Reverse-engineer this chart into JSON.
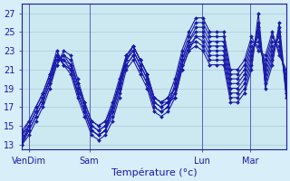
{
  "title": "",
  "xlabel": "Température (°c)",
  "ylabel": "",
  "bg_color": "#d8eef8",
  "plot_bg_color": "#cce8f0",
  "line_color": "#1a1aaa",
  "grid_color": "#aaccdd",
  "yticks": [
    13,
    15,
    17,
    19,
    21,
    23,
    25,
    27
  ],
  "ylim": [
    12.5,
    28.0
  ],
  "xlim": [
    0,
    110
  ],
  "xtick_positions": [
    3,
    28,
    75,
    95
  ],
  "xtick_labels": [
    "VenDim",
    "Sam",
    "Lun",
    "Mar"
  ],
  "series": [
    [
      13.0,
      14.0,
      15.5,
      17.0,
      19.0,
      21.5,
      23.0,
      22.5,
      20.0,
      17.5,
      15.5,
      15.0,
      15.5,
      17.0,
      19.5,
      22.5,
      23.5,
      22.0,
      20.5,
      18.0,
      17.5,
      17.5,
      18.0,
      21.0,
      23.0,
      23.5,
      23.0,
      21.5,
      21.5,
      21.5,
      17.5,
      17.5,
      18.5,
      21.0,
      27.0,
      19.0,
      21.5,
      26.0,
      18.5
    ],
    [
      13.5,
      14.5,
      16.0,
      17.5,
      19.5,
      21.5,
      22.5,
      21.5,
      19.5,
      17.0,
      15.0,
      14.5,
      15.0,
      16.5,
      19.0,
      22.0,
      23.0,
      21.5,
      20.0,
      17.5,
      17.0,
      17.5,
      18.5,
      21.5,
      23.5,
      24.0,
      23.5,
      22.0,
      22.0,
      22.0,
      18.0,
      18.0,
      19.0,
      21.5,
      26.0,
      19.5,
      22.0,
      25.5,
      18.0
    ],
    [
      14.0,
      15.0,
      16.5,
      18.0,
      20.0,
      22.0,
      22.0,
      21.0,
      18.5,
      16.5,
      14.5,
      14.0,
      14.5,
      16.0,
      18.5,
      21.5,
      22.5,
      21.0,
      19.5,
      17.0,
      16.5,
      17.0,
      18.5,
      21.5,
      23.5,
      24.5,
      24.0,
      22.5,
      22.5,
      22.5,
      18.5,
      18.5,
      19.5,
      22.0,
      25.5,
      20.0,
      22.5,
      25.0,
      18.5
    ],
    [
      14.5,
      15.5,
      17.0,
      18.5,
      20.5,
      22.5,
      21.5,
      20.5,
      18.0,
      16.0,
      14.0,
      13.5,
      14.0,
      15.5,
      18.0,
      21.0,
      22.0,
      20.5,
      19.0,
      16.5,
      16.0,
      16.5,
      18.0,
      21.0,
      23.0,
      24.5,
      24.5,
      23.0,
      23.0,
      23.0,
      19.0,
      19.0,
      20.0,
      22.5,
      25.0,
      20.5,
      23.0,
      24.5,
      19.0
    ],
    [
      13.0,
      14.5,
      16.0,
      17.5,
      19.5,
      22.0,
      22.5,
      22.0,
      19.5,
      17.5,
      15.5,
      15.0,
      15.5,
      17.5,
      20.0,
      22.5,
      23.5,
      22.0,
      20.5,
      18.0,
      17.5,
      18.0,
      19.0,
      22.0,
      24.0,
      25.0,
      25.0,
      23.5,
      23.5,
      23.5,
      19.5,
      19.5,
      20.5,
      23.0,
      24.5,
      21.0,
      23.5,
      24.0,
      19.5
    ],
    [
      13.5,
      15.0,
      16.5,
      18.0,
      20.0,
      22.5,
      22.0,
      21.5,
      19.0,
      17.0,
      15.0,
      14.5,
      15.0,
      17.0,
      19.5,
      22.0,
      23.0,
      21.5,
      20.0,
      17.5,
      17.0,
      17.5,
      19.0,
      22.0,
      24.0,
      25.5,
      25.5,
      24.0,
      24.0,
      24.0,
      20.0,
      20.0,
      21.0,
      23.5,
      24.0,
      21.5,
      24.0,
      23.5,
      20.0
    ],
    [
      14.0,
      15.5,
      17.0,
      18.5,
      20.5,
      23.0,
      21.5,
      21.0,
      18.5,
      16.5,
      14.5,
      14.0,
      14.5,
      16.5,
      19.0,
      21.5,
      22.5,
      21.0,
      19.5,
      17.0,
      16.5,
      17.0,
      19.5,
      22.5,
      24.5,
      26.0,
      26.0,
      24.5,
      24.5,
      24.5,
      20.5,
      20.5,
      21.5,
      24.0,
      23.5,
      22.0,
      24.5,
      23.0,
      20.5
    ],
    [
      13.0,
      15.0,
      16.5,
      18.0,
      20.0,
      22.5,
      21.5,
      21.0,
      18.5,
      16.5,
      14.5,
      14.0,
      14.5,
      17.0,
      19.5,
      22.0,
      23.5,
      22.0,
      20.5,
      18.0,
      17.5,
      18.0,
      20.0,
      23.0,
      25.0,
      26.5,
      26.5,
      25.0,
      25.0,
      25.0,
      21.0,
      21.0,
      22.0,
      24.5,
      23.0,
      22.5,
      25.0,
      22.5,
      21.0
    ]
  ]
}
